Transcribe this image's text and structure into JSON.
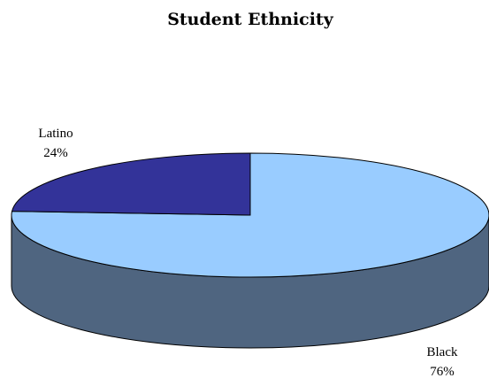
{
  "chart_data": {
    "type": "pie",
    "title": "Student Ethnicity",
    "three_d": true,
    "legend": "none",
    "slices": [
      {
        "label": "Black",
        "value": 76,
        "value_label": "76%",
        "color": "#99ccff",
        "side_color": "#4f6580"
      },
      {
        "label": "Latino",
        "value": 24,
        "value_label": "24%",
        "color": "#333399",
        "side_color": "#1f1f66"
      }
    ]
  }
}
